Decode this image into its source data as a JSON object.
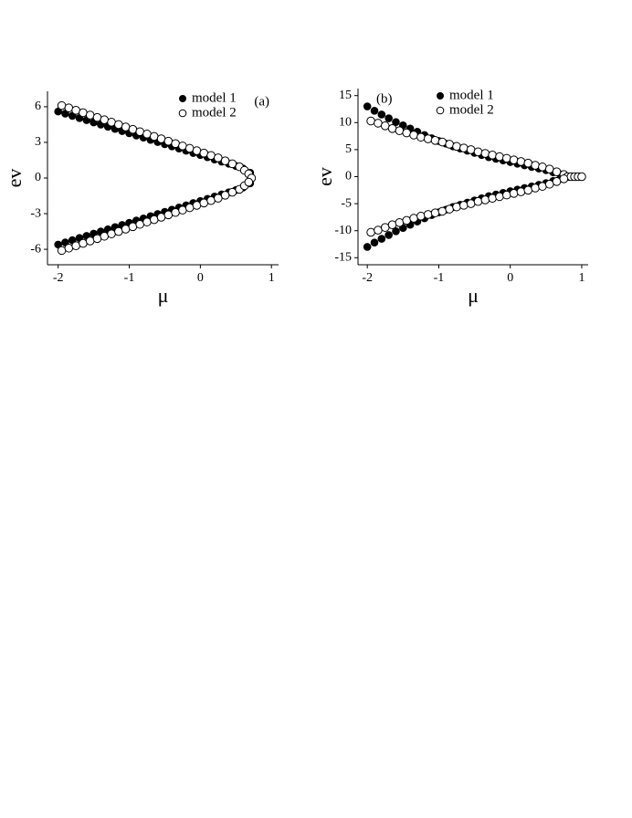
{
  "chart_data": [
    {
      "type": "scatter",
      "panel_label": "(a)",
      "panel_label_position": "top-right",
      "x_label": "μ",
      "y_label": "ev",
      "xlim": [
        -2.15,
        1.1
      ],
      "ylim": [
        -7.3,
        7.3
      ],
      "xticks": [
        -2,
        -1,
        0,
        1
      ],
      "yticks": [
        -6,
        -3,
        0,
        3,
        6
      ],
      "legend": "top-right",
      "series": [
        {
          "name": "model 1",
          "color": "#000000",
          "marker": "filled",
          "x": [
            -2,
            -1.9,
            -1.8,
            -1.7,
            -1.6,
            -1.5,
            -1.4,
            -1.3,
            -1.2,
            -1.1,
            -1.0,
            -0.9,
            -0.8,
            -0.7,
            -0.6,
            -0.5,
            -0.4,
            -0.3,
            -0.2,
            -0.1,
            0,
            0.1,
            0.2,
            0.3,
            0.4,
            0.5,
            0.6,
            0.7,
            -2,
            -1.9,
            -1.8,
            -1.7,
            -1.6,
            -1.5,
            -1.4,
            -1.3,
            -1.2,
            -1.1,
            -1.0,
            -0.9,
            -0.8,
            -0.7,
            -0.6,
            -0.5,
            -0.4,
            -0.3,
            -0.2,
            -0.1,
            0,
            0.1,
            0.2,
            0.3,
            0.4,
            0.5,
            0.6,
            0.7
          ],
          "y": [
            5.6,
            5.42,
            5.23,
            5.05,
            4.87,
            4.68,
            4.5,
            4.32,
            4.13,
            3.95,
            3.77,
            3.58,
            3.4,
            3.21,
            3.03,
            2.85,
            2.66,
            2.48,
            2.3,
            2.11,
            1.93,
            1.75,
            1.56,
            1.38,
            1.2,
            1.01,
            0.8,
            0.45,
            -5.6,
            -5.42,
            -5.23,
            -5.05,
            -4.87,
            -4.68,
            -4.5,
            -4.32,
            -4.13,
            -3.95,
            -3.77,
            -3.58,
            -3.4,
            -3.21,
            -3.03,
            -2.85,
            -2.66,
            -2.48,
            -2.3,
            -2.11,
            -1.93,
            -1.75,
            -1.56,
            -1.38,
            -1.2,
            -1.01,
            -0.8,
            -0.45
          ]
        },
        {
          "name": "model 2",
          "color": "#000000",
          "marker": "open",
          "x": [
            -1.95,
            -1.85,
            -1.75,
            -1.65,
            -1.55,
            -1.45,
            -1.35,
            -1.25,
            -1.15,
            -1.05,
            -0.95,
            -0.85,
            -0.75,
            -0.65,
            -0.55,
            -0.45,
            -0.35,
            -0.25,
            -0.15,
            -0.05,
            0.05,
            0.15,
            0.25,
            0.35,
            0.45,
            0.55,
            0.62,
            0.68,
            0.72,
            -1.95,
            -1.85,
            -1.75,
            -1.65,
            -1.55,
            -1.45,
            -1.35,
            -1.25,
            -1.15,
            -1.05,
            -0.95,
            -0.85,
            -0.75,
            -0.65,
            -0.55,
            -0.45,
            -0.35,
            -0.25,
            -0.15,
            -0.05,
            0.05,
            0.15,
            0.25,
            0.35,
            0.45,
            0.55,
            0.62,
            0.68
          ],
          "y": [
            6.1,
            5.9,
            5.7,
            5.5,
            5.3,
            5.1,
            4.9,
            4.7,
            4.5,
            4.3,
            4.1,
            3.9,
            3.7,
            3.5,
            3.3,
            3.1,
            2.9,
            2.7,
            2.5,
            2.3,
            2.1,
            1.9,
            1.7,
            1.45,
            1.2,
            0.95,
            0.65,
            0.35,
            0,
            -6.1,
            -5.9,
            -5.7,
            -5.5,
            -5.3,
            -5.1,
            -4.9,
            -4.7,
            -4.5,
            -4.3,
            -4.1,
            -3.9,
            -3.7,
            -3.5,
            -3.3,
            -3.1,
            -2.9,
            -2.7,
            -2.5,
            -2.3,
            -2.1,
            -1.9,
            -1.7,
            -1.45,
            -1.2,
            -0.95,
            -0.65,
            -0.35
          ]
        }
      ]
    },
    {
      "type": "scatter",
      "panel_label": "(b)",
      "panel_label_position": "top-left",
      "x_label": "μ",
      "y_label": "ev",
      "xlim": [
        -2.13,
        1.09
      ],
      "ylim": [
        -16.3,
        16.3
      ],
      "xticks": [
        -2,
        -1,
        0,
        1
      ],
      "yticks": [
        -15,
        -10,
        -5,
        0,
        5,
        10,
        15
      ],
      "legend": "top-right",
      "series": [
        {
          "name": "model 1",
          "color": "#000000",
          "marker": "filled",
          "x": [
            -2,
            -1.9,
            -1.8,
            -1.7,
            -1.6,
            -1.5,
            -1.4,
            -1.3,
            -1.2,
            -1.1,
            -1.0,
            -0.9,
            -0.8,
            -0.7,
            -0.6,
            -0.5,
            -0.4,
            -0.3,
            -0.2,
            -0.1,
            0,
            0.1,
            0.2,
            0.3,
            0.4,
            0.5,
            0.6,
            0.7,
            -2,
            -1.9,
            -1.8,
            -1.7,
            -1.6,
            -1.5,
            -1.4,
            -1.3,
            -1.2,
            -1.1,
            -1.0,
            -0.9,
            -0.8,
            -0.7,
            -0.6,
            -0.5,
            -0.4,
            -0.3,
            -0.2,
            -0.1,
            0,
            0.1,
            0.2,
            0.3,
            0.4,
            0.5,
            0.6,
            0.7
          ],
          "y": [
            13,
            12.2,
            11.5,
            10.8,
            10.1,
            9.5,
            8.9,
            8.3,
            7.7,
            7.1,
            6.6,
            6.1,
            5.6,
            5.2,
            4.8,
            4.4,
            4.0,
            3.6,
            3.3,
            3.0,
            2.7,
            2.4,
            2.1,
            1.8,
            1.5,
            1.2,
            0.8,
            0.4,
            -13,
            -12.2,
            -11.5,
            -10.8,
            -10.1,
            -9.5,
            -8.9,
            -8.3,
            -7.7,
            -7.1,
            -6.6,
            -6.1,
            -5.6,
            -5.2,
            -4.8,
            -4.4,
            -4.0,
            -3.6,
            -3.3,
            -3.0,
            -2.7,
            -2.4,
            -2.1,
            -1.8,
            -1.5,
            -1.2,
            -0.8,
            -0.4
          ]
        },
        {
          "name": "model 2",
          "color": "#000000",
          "marker": "open",
          "x": [
            -1.95,
            -1.85,
            -1.75,
            -1.65,
            -1.55,
            -1.45,
            -1.35,
            -1.25,
            -1.15,
            -1.05,
            -0.95,
            -0.85,
            -0.75,
            -0.65,
            -0.55,
            -0.45,
            -0.35,
            -0.25,
            -0.15,
            -0.05,
            0.05,
            0.15,
            0.25,
            0.35,
            0.45,
            0.55,
            0.65,
            0.75,
            0.8,
            0.85,
            0.9,
            0.95,
            1.0,
            -1.95,
            -1.85,
            -1.75,
            -1.65,
            -1.55,
            -1.45,
            -1.35,
            -1.25,
            -1.15,
            -1.05,
            -0.95,
            -0.85,
            -0.75,
            -0.65,
            -0.55,
            -0.45,
            -0.35,
            -0.25,
            -0.15,
            -0.05,
            0.05,
            0.15,
            0.25,
            0.35,
            0.45,
            0.55,
            0.65,
            0.75
          ],
          "y": [
            10.3,
            9.9,
            9.4,
            8.9,
            8.5,
            8.1,
            7.7,
            7.3,
            7.0,
            6.7,
            6.4,
            6.0,
            5.6,
            5.3,
            5.0,
            4.6,
            4.3,
            4.0,
            3.7,
            3.4,
            3.1,
            2.8,
            2.5,
            2.1,
            1.8,
            1.4,
            0.9,
            0.4,
            0,
            0,
            0,
            0,
            0,
            -10.3,
            -9.9,
            -9.4,
            -8.9,
            -8.5,
            -8.1,
            -7.7,
            -7.3,
            -7.0,
            -6.7,
            -6.4,
            -6.0,
            -5.6,
            -5.3,
            -5.0,
            -4.6,
            -4.3,
            -4.0,
            -3.7,
            -3.4,
            -3.1,
            -2.8,
            -2.5,
            -2.1,
            -1.8,
            -1.4,
            -0.9,
            -0.4
          ]
        }
      ]
    }
  ]
}
